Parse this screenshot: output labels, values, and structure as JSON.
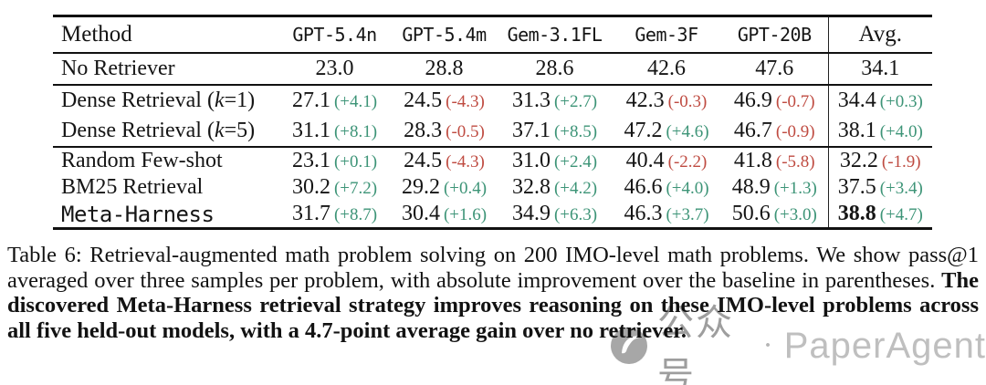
{
  "colors": {
    "delta_positive": "#3d9477",
    "delta_negative": "#bf4b41"
  },
  "table": {
    "columns": [
      "Method",
      "GPT-5.4n",
      "GPT-5.4m",
      "Gem-3.1FL",
      "Gem-3F",
      "GPT-20B",
      "Avg."
    ],
    "baseline_row": {
      "method": "No Retriever",
      "values": [
        "23.0",
        "28.8",
        "28.6",
        "42.6",
        "47.6",
        "34.1"
      ]
    },
    "groups": [
      {
        "rows": [
          {
            "method": "Dense Retrieval (k=1)",
            "mono": false,
            "cells": [
              [
                "27.1",
                "+4.1"
              ],
              [
                "24.5",
                "-4.3"
              ],
              [
                "31.3",
                "+2.7"
              ],
              [
                "42.3",
                "-0.3"
              ],
              [
                "46.9",
                "-0.7"
              ],
              [
                "34.4",
                "+0.3"
              ]
            ],
            "bold_avg": false
          },
          {
            "method": "Dense Retrieval (k=5)",
            "mono": false,
            "cells": [
              [
                "31.1",
                "+8.1"
              ],
              [
                "28.3",
                "-0.5"
              ],
              [
                "37.1",
                "+8.5"
              ],
              [
                "47.2",
                "+4.6"
              ],
              [
                "46.7",
                "-0.9"
              ],
              [
                "38.1",
                "+4.0"
              ]
            ],
            "bold_avg": false
          }
        ]
      },
      {
        "rows": [
          {
            "method": "Random Few-shot",
            "mono": false,
            "cells": [
              [
                "23.1",
                "+0.1"
              ],
              [
                "24.5",
                "-4.3"
              ],
              [
                "31.0",
                "+2.4"
              ],
              [
                "40.4",
                "-2.2"
              ],
              [
                "41.8",
                "-5.8"
              ],
              [
                "32.2",
                "-1.9"
              ]
            ],
            "bold_avg": false
          },
          {
            "method": "BM25 Retrieval",
            "mono": false,
            "cells": [
              [
                "30.2",
                "+7.2"
              ],
              [
                "29.2",
                "+0.4"
              ],
              [
                "32.8",
                "+4.2"
              ],
              [
                "46.6",
                "+4.0"
              ],
              [
                "48.9",
                "+1.3"
              ],
              [
                "37.5",
                "+3.4"
              ]
            ],
            "bold_avg": false
          },
          {
            "method": "Meta-Harness",
            "mono": true,
            "cells": [
              [
                "31.7",
                "+8.7"
              ],
              [
                "30.4",
                "+1.6"
              ],
              [
                "34.9",
                "+6.3"
              ],
              [
                "46.3",
                "+3.7"
              ],
              [
                "50.6",
                "+3.0"
              ],
              [
                "38.8",
                "+4.7"
              ]
            ],
            "bold_avg": true
          }
        ]
      }
    ]
  },
  "caption": {
    "normal": "Table 6:  Retrieval-augmented math problem solving on 200 IMO-level math problems. We show pass@1 averaged over three samples per problem, with absolute improvement over the baseline in parentheses. ",
    "bold": "The discovered Meta-Harness retrieval strategy improves reasoning on these IMO-level problems across all five held-out models, with a 4.7-point average gain over no retriever."
  },
  "watermark": {
    "logo": "wechat-official-account-icon",
    "text_cn": "公众号",
    "separator": "·",
    "text_en": "PaperAgent"
  }
}
